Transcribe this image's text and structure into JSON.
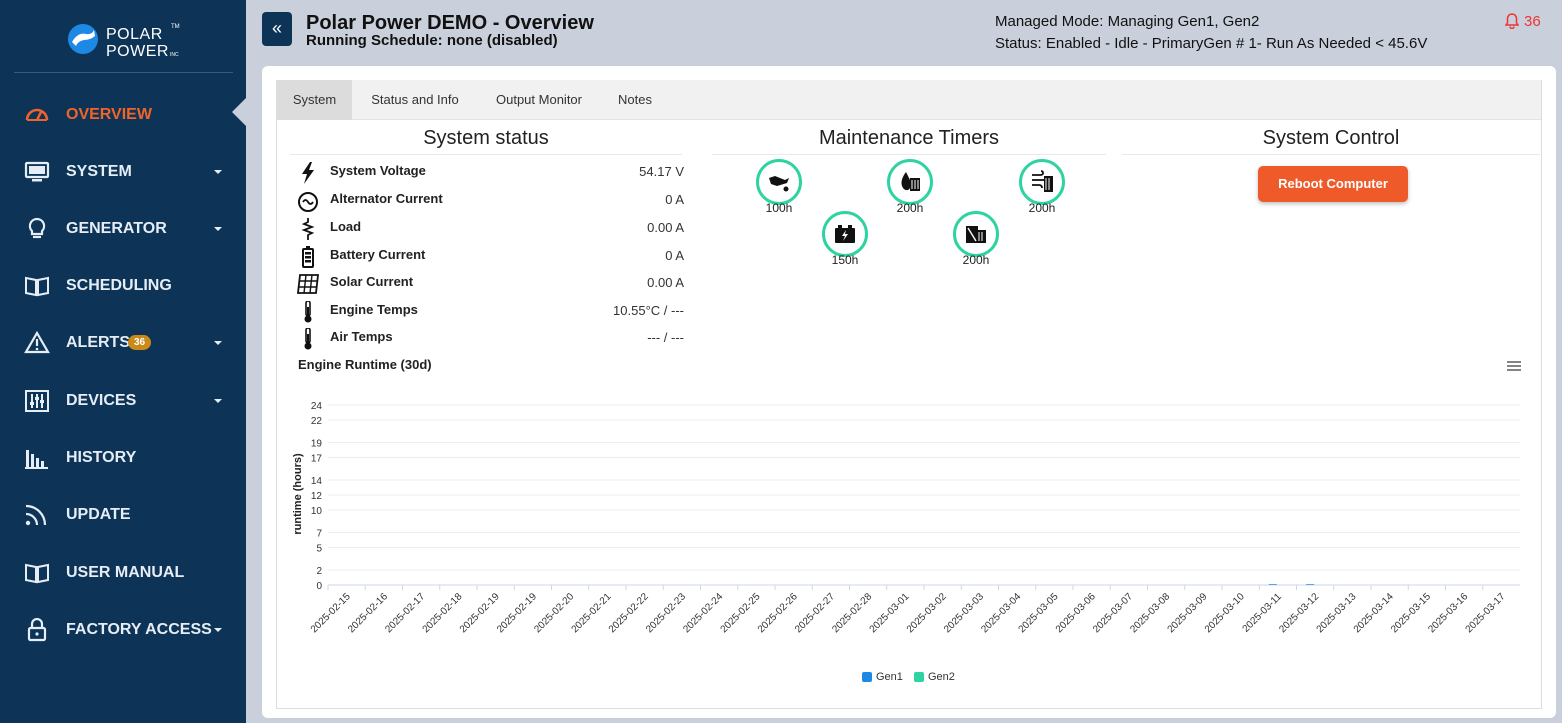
{
  "app": {
    "logo_line1": "POLAR",
    "logo_line2": "POWER",
    "logo_tm": "TM",
    "logo_inc": "INC"
  },
  "sidebar": {
    "items": [
      {
        "label": "OVERVIEW",
        "icon": "gauge-icon",
        "active": true
      },
      {
        "label": "SYSTEM",
        "icon": "monitor-icon",
        "dropdown": true
      },
      {
        "label": "GENERATOR",
        "icon": "lightbulb-icon",
        "dropdown": true
      },
      {
        "label": "SCHEDULING",
        "icon": "book-icon"
      },
      {
        "label": "ALERTS",
        "icon": "warning-icon",
        "dropdown": true,
        "badge": "36"
      },
      {
        "label": "DEVICES",
        "icon": "sliders-icon",
        "dropdown": true
      },
      {
        "label": "HISTORY",
        "icon": "bar-history-icon"
      },
      {
        "label": "UPDATE",
        "icon": "rss-icon"
      },
      {
        "label": "USER MANUAL",
        "icon": "book-icon"
      },
      {
        "label": "FACTORY ACCESS",
        "icon": "lock-icon",
        "dropdown": true
      }
    ]
  },
  "header": {
    "collapse_icon": "«",
    "title": "Polar Power DEMO - Overview",
    "schedule": "Running Schedule: none (disabled)",
    "managed_mode": "Managed Mode: Managing Gen1, Gen2",
    "status": "Status: Enabled - Idle - PrimaryGen # 1- Run As Needed < 45.6V",
    "alert_count": "36"
  },
  "tabs": [
    {
      "label": "System",
      "active": true
    },
    {
      "label": "Status and Info"
    },
    {
      "label": "Output Monitor"
    },
    {
      "label": "Notes"
    }
  ],
  "system_status": {
    "title": "System status",
    "rows": [
      {
        "label": "System Voltage",
        "value": "54.17 V",
        "icon": "lightning-icon"
      },
      {
        "label": "Alternator Current",
        "value": "0 A",
        "icon": "alternator-icon"
      },
      {
        "label": "Load",
        "value": "0.00 A",
        "icon": "resistor-icon"
      },
      {
        "label": "Battery Current",
        "value": "0 A",
        "icon": "battery-icon"
      },
      {
        "label": "Solar Current",
        "value": "0.00 A",
        "icon": "solar-panel-icon"
      },
      {
        "label": "Engine Temps",
        "value": "10.55°C  /  ---",
        "icon": "thermometer-icon"
      },
      {
        "label": "Air Temps",
        "value": "---  /  ---",
        "icon": "thermometer-icon"
      }
    ]
  },
  "maintenance": {
    "title": "Maintenance Timers",
    "timers": [
      {
        "label": "100h",
        "icon": "oil-can-icon"
      },
      {
        "label": "150h",
        "icon": "battery-charge-icon"
      },
      {
        "label": "200h",
        "icon": "fuel-filter-icon"
      },
      {
        "label": "200h",
        "icon": "coolant-icon"
      },
      {
        "label": "200h",
        "icon": "air-filter-icon"
      }
    ]
  },
  "system_control": {
    "title": "System Control",
    "reboot_label": "Reboot Computer"
  },
  "chart": {
    "title": "Engine Runtime (30d)",
    "menu_icon": "hamburger-menu-icon"
  },
  "chart_data": {
    "type": "bar",
    "title": "Engine Runtime (30d)",
    "xlabel": "",
    "ylabel": "runtime (hours)",
    "ylim": [
      0,
      24
    ],
    "yticks": [
      "0",
      "2",
      "5",
      "7",
      "10",
      "12",
      "14",
      "17",
      "19",
      "22",
      "24"
    ],
    "categories": [
      "2025-02-15",
      "2025-02-16",
      "2025-02-17",
      "2025-02-18",
      "2025-02-19",
      "2025-02-19",
      "2025-02-20",
      "2025-02-21",
      "2025-02-22",
      "2025-02-23",
      "2025-02-24",
      "2025-02-25",
      "2025-02-26",
      "2025-02-27",
      "2025-02-28",
      "2025-03-01",
      "2025-03-02",
      "2025-03-03",
      "2025-03-04",
      "2025-03-05",
      "2025-03-06",
      "2025-03-07",
      "2025-03-08",
      "2025-03-09",
      "2025-03-10",
      "2025-03-11",
      "2025-03-12",
      "2025-03-13",
      "2025-03-14",
      "2025-03-15",
      "2025-03-16",
      "2025-03-17"
    ],
    "series": [
      {
        "name": "Gen1",
        "color": "#1e88e5",
        "values": [
          0,
          0,
          0,
          0,
          0,
          0,
          0,
          0,
          0,
          0,
          0,
          0,
          0,
          0,
          0,
          0,
          0,
          0,
          0,
          0,
          0,
          0,
          0,
          0,
          0,
          0.1,
          0.1,
          0,
          0,
          0,
          0,
          0
        ]
      },
      {
        "name": "Gen2",
        "color": "#2fd3a1",
        "values": [
          0,
          0,
          0,
          0,
          0,
          0,
          0,
          0,
          0,
          0,
          0,
          0,
          0,
          0,
          0,
          0,
          0,
          0,
          0,
          0,
          0,
          0,
          0,
          0,
          0,
          0,
          0,
          0,
          0,
          0,
          0,
          0
        ]
      }
    ],
    "grid": true,
    "legend": "bottom"
  }
}
